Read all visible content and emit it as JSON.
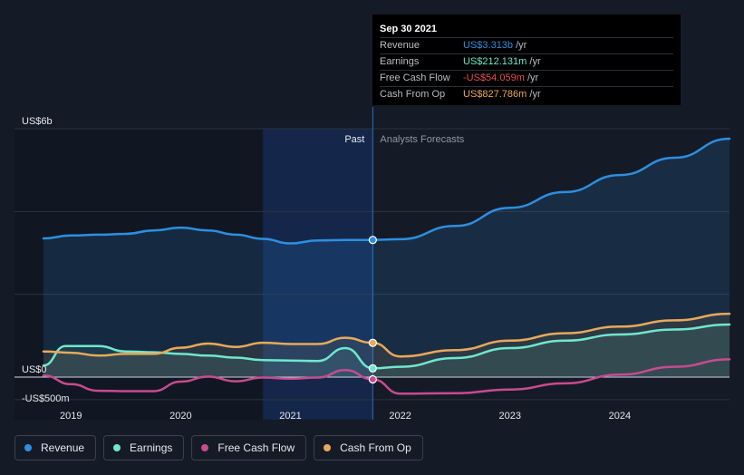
{
  "tooltip": {
    "date": "Sep 30 2021",
    "rows": [
      {
        "label": "Revenue",
        "value": "US$3.313b",
        "unit": "/yr",
        "color": "#2d8fe0"
      },
      {
        "label": "Earnings",
        "value": "US$212.131m",
        "unit": "/yr",
        "color": "#6ee8cc"
      },
      {
        "label": "Free Cash Flow",
        "value": "-US$54.059m",
        "unit": "/yr",
        "color": "#e84d5a"
      },
      {
        "label": "Cash From Op",
        "value": "US$827.786m",
        "unit": "/yr",
        "color": "#e8a95a"
      }
    ]
  },
  "legend": [
    {
      "label": "Revenue",
      "color": "#2d8fe0"
    },
    {
      "label": "Earnings",
      "color": "#6ee8cc"
    },
    {
      "label": "Free Cash Flow",
      "color": "#c84b8f"
    },
    {
      "label": "Cash From Op",
      "color": "#e8a95a"
    }
  ],
  "chart_data": {
    "type": "line",
    "title": "",
    "ylim": [
      -500,
      6000
    ],
    "xlim": [
      2018.75,
      2025.0
    ],
    "y_tick_labels": [
      {
        "value": 6000,
        "label": "US$6b"
      },
      {
        "value": 0,
        "label": "US$0"
      },
      {
        "value": -500,
        "label": "-US$500m"
      }
    ],
    "x_tick_labels": [
      {
        "value": 2019,
        "label": "2019"
      },
      {
        "value": 2020,
        "label": "2020"
      },
      {
        "value": 2021,
        "label": "2021"
      },
      {
        "value": 2022,
        "label": "2022"
      },
      {
        "value": 2023,
        "label": "2023"
      },
      {
        "value": 2024,
        "label": "2024"
      }
    ],
    "past_label": "Past",
    "forecast_label": "Analysts Forecasts",
    "divider_x": 2021.75,
    "highlight_range": [
      2020.75,
      2021.75
    ],
    "series": [
      {
        "name": "Revenue",
        "color": "#2d8fe0",
        "fill": true,
        "points": [
          [
            2018.75,
            3350
          ],
          [
            2019.0,
            3420
          ],
          [
            2019.25,
            3440
          ],
          [
            2019.5,
            3460
          ],
          [
            2019.75,
            3540
          ],
          [
            2020.0,
            3610
          ],
          [
            2020.25,
            3540
          ],
          [
            2020.5,
            3440
          ],
          [
            2020.75,
            3340
          ],
          [
            2021.0,
            3230
          ],
          [
            2021.25,
            3300
          ],
          [
            2021.5,
            3310
          ],
          [
            2021.75,
            3313
          ],
          [
            2022.0,
            3330
          ],
          [
            2022.5,
            3650
          ],
          [
            2023.0,
            4090
          ],
          [
            2023.5,
            4470
          ],
          [
            2024.0,
            4880
          ],
          [
            2024.5,
            5300
          ],
          [
            2025.0,
            5760
          ]
        ]
      },
      {
        "name": "Earnings",
        "color": "#6ee8cc",
        "fill": true,
        "points": [
          [
            2018.75,
            280
          ],
          [
            2018.95,
            750
          ],
          [
            2019.25,
            750
          ],
          [
            2019.5,
            620
          ],
          [
            2019.75,
            600
          ],
          [
            2020.0,
            560
          ],
          [
            2020.25,
            520
          ],
          [
            2020.5,
            470
          ],
          [
            2020.75,
            410
          ],
          [
            2021.0,
            400
          ],
          [
            2021.25,
            390
          ],
          [
            2021.5,
            700
          ],
          [
            2021.75,
            212
          ],
          [
            2022.0,
            250
          ],
          [
            2022.5,
            460
          ],
          [
            2023.0,
            700
          ],
          [
            2023.5,
            880
          ],
          [
            2024.0,
            1030
          ],
          [
            2024.5,
            1150
          ],
          [
            2025.0,
            1270
          ]
        ]
      },
      {
        "name": "Free Cash Flow",
        "color": "#c84b8f",
        "fill": false,
        "points": [
          [
            2018.75,
            40
          ],
          [
            2019.0,
            -170
          ],
          [
            2019.25,
            -330
          ],
          [
            2019.5,
            -340
          ],
          [
            2019.75,
            -340
          ],
          [
            2020.0,
            -110
          ],
          [
            2020.25,
            10
          ],
          [
            2020.5,
            -100
          ],
          [
            2020.75,
            -10
          ],
          [
            2021.0,
            -40
          ],
          [
            2021.25,
            -10
          ],
          [
            2021.5,
            170
          ],
          [
            2021.75,
            -54
          ],
          [
            2022.0,
            -400
          ],
          [
            2022.5,
            -390
          ],
          [
            2023.0,
            -300
          ],
          [
            2023.5,
            -150
          ],
          [
            2024.0,
            60
          ],
          [
            2024.5,
            250
          ],
          [
            2025.0,
            430
          ]
        ]
      },
      {
        "name": "Cash From Op",
        "color": "#e8a95a",
        "fill": true,
        "points": [
          [
            2018.75,
            620
          ],
          [
            2019.0,
            590
          ],
          [
            2019.25,
            520
          ],
          [
            2019.5,
            560
          ],
          [
            2019.75,
            560
          ],
          [
            2020.0,
            710
          ],
          [
            2020.25,
            810
          ],
          [
            2020.5,
            730
          ],
          [
            2020.75,
            830
          ],
          [
            2021.0,
            800
          ],
          [
            2021.25,
            800
          ],
          [
            2021.5,
            950
          ],
          [
            2021.75,
            828
          ],
          [
            2022.0,
            500
          ],
          [
            2022.5,
            650
          ],
          [
            2023.0,
            880
          ],
          [
            2023.5,
            1060
          ],
          [
            2024.0,
            1220
          ],
          [
            2024.5,
            1370
          ],
          [
            2025.0,
            1530
          ]
        ]
      }
    ]
  }
}
